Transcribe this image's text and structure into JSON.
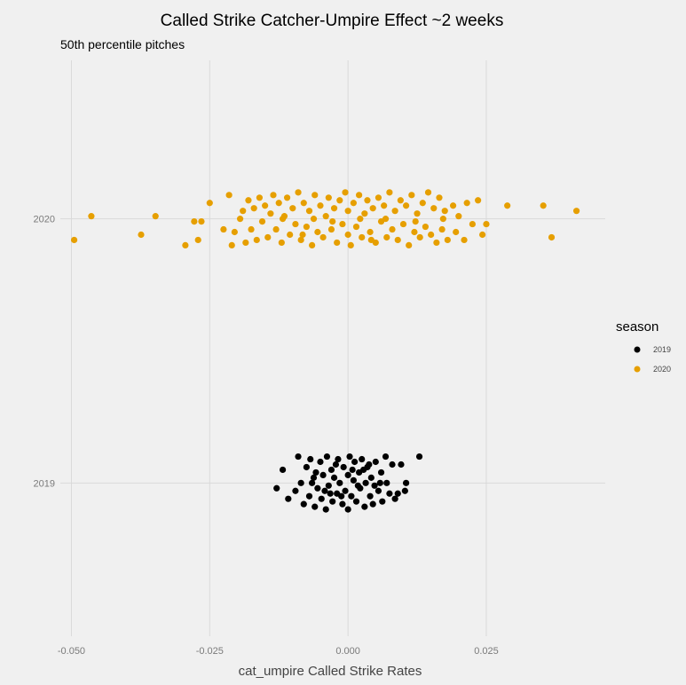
{
  "chart_data": {
    "type": "scatter",
    "title": "Called Strike Catcher-Umpire Effect ~2 weeks",
    "subtitle": "50th percentile pitches",
    "xlabel": "cat_umpire Called Strike Rates",
    "ylabel": "",
    "xlim": [
      -0.052,
      0.0465
    ],
    "ylim": [
      2018.42,
      2020.6
    ],
    "x_ticks": [
      -0.05,
      -0.025,
      0,
      0.025
    ],
    "x_tick_labels": [
      "-0.050",
      "-0.025",
      "0.000",
      "0.025"
    ],
    "y_ticks": [
      2019,
      2020
    ],
    "y_tick_labels": [
      "2019",
      "2020"
    ],
    "grid": true,
    "legend": {
      "title": "season",
      "position": "right",
      "entries": [
        "2019",
        "2020"
      ]
    },
    "series": [
      {
        "name": "2019",
        "color": "#000000",
        "points": [
          [
            -0.0129,
            2018.98
          ],
          [
            -0.0118,
            2019.05
          ],
          [
            -0.0108,
            2018.94
          ],
          [
            0.0129,
            2019.1
          ],
          [
            0.0105,
            2019.0
          ],
          [
            0.0103,
            2018.97
          ],
          [
            0.0096,
            2019.07
          ],
          [
            -0.009,
            2019.1
          ],
          [
            -0.0085,
            2019.0
          ],
          [
            -0.008,
            2018.92
          ],
          [
            -0.0075,
            2019.06
          ],
          [
            -0.007,
            2018.95
          ],
          [
            -0.0068,
            2019.09
          ],
          [
            -0.0062,
            2019.02
          ],
          [
            -0.006,
            2018.91
          ],
          [
            -0.0055,
            2018.98
          ],
          [
            -0.005,
            2019.08
          ],
          [
            -0.0048,
            2018.94
          ],
          [
            -0.0045,
            2019.03
          ],
          [
            -0.004,
            2018.9
          ],
          [
            -0.0038,
            2019.1
          ],
          [
            -0.0035,
            2018.99
          ],
          [
            -0.003,
            2019.05
          ],
          [
            -0.0028,
            2018.93
          ],
          [
            -0.0025,
            2019.02
          ],
          [
            -0.002,
            2018.96
          ],
          [
            -0.0018,
            2019.09
          ],
          [
            -0.0015,
            2019.0
          ],
          [
            -0.001,
            2018.92
          ],
          [
            -0.0008,
            2019.06
          ],
          [
            -0.0005,
            2018.97
          ],
          [
            0.0,
            2019.03
          ],
          [
            0.0,
            2018.9
          ],
          [
            0.0003,
            2019.1
          ],
          [
            0.0006,
            2018.95
          ],
          [
            0.001,
            2019.01
          ],
          [
            0.0012,
            2019.08
          ],
          [
            0.0015,
            2018.93
          ],
          [
            0.002,
            2019.04
          ],
          [
            0.0022,
            2018.98
          ],
          [
            0.0025,
            2019.09
          ],
          [
            0.003,
            2018.91
          ],
          [
            0.0032,
            2019.0
          ],
          [
            0.0035,
            2019.06
          ],
          [
            0.004,
            2018.95
          ],
          [
            0.0042,
            2019.02
          ],
          [
            0.0045,
            2018.92
          ],
          [
            0.005,
            2019.08
          ],
          [
            0.0055,
            2018.97
          ],
          [
            0.006,
            2019.04
          ],
          [
            0.0062,
            2018.93
          ],
          [
            0.0068,
            2019.1
          ],
          [
            0.007,
            2019.0
          ],
          [
            0.0075,
            2018.96
          ],
          [
            0.008,
            2019.07
          ],
          [
            0.0085,
            2018.94
          ],
          [
            -0.0065,
            2019.0
          ],
          [
            -0.0042,
            2018.97
          ],
          [
            -0.0022,
            2019.07
          ],
          [
            -0.0012,
            2018.95
          ],
          [
            0.0008,
            2019.05
          ],
          [
            0.0018,
            2018.99
          ],
          [
            0.0038,
            2019.07
          ],
          [
            0.0058,
            2019.0
          ],
          [
            -0.0095,
            2018.97
          ],
          [
            0.009,
            2018.96
          ],
          [
            -0.0058,
            2019.04
          ],
          [
            0.0048,
            2018.99
          ],
          [
            -0.0032,
            2018.96
          ],
          [
            0.0028,
            2019.05
          ]
        ]
      },
      {
        "name": "2020",
        "color": "#E69F00",
        "points": [
          [
            -0.0495,
            2019.92
          ],
          [
            -0.0464,
            2020.01
          ],
          [
            -0.0374,
            2019.94
          ],
          [
            -0.0348,
            2020.01
          ],
          [
            -0.0294,
            2019.9
          ],
          [
            -0.0278,
            2019.99
          ],
          [
            -0.0271,
            2019.92
          ],
          [
            -0.0265,
            2019.99
          ],
          [
            -0.025,
            2020.06
          ],
          [
            0.0413,
            2020.03
          ],
          [
            0.0368,
            2019.93
          ],
          [
            0.0353,
            2020.05
          ],
          [
            0.0288,
            2020.05
          ],
          [
            0.025,
            2019.98
          ],
          [
            0.0243,
            2019.94
          ],
          [
            0.0235,
            2020.07
          ],
          [
            -0.0215,
            2020.09
          ],
          [
            -0.021,
            2019.9
          ],
          [
            -0.0205,
            2019.95
          ],
          [
            -0.019,
            2020.03
          ],
          [
            -0.0185,
            2019.91
          ],
          [
            -0.018,
            2020.07
          ],
          [
            -0.0175,
            2019.96
          ],
          [
            -0.017,
            2020.04
          ],
          [
            -0.0165,
            2019.92
          ],
          [
            -0.016,
            2020.08
          ],
          [
            -0.0155,
            2019.99
          ],
          [
            -0.015,
            2020.05
          ],
          [
            -0.0145,
            2019.93
          ],
          [
            -0.014,
            2020.02
          ],
          [
            -0.0135,
            2020.09
          ],
          [
            -0.013,
            2019.96
          ],
          [
            -0.0125,
            2020.06
          ],
          [
            -0.012,
            2019.91
          ],
          [
            -0.0115,
            2020.01
          ],
          [
            -0.011,
            2020.08
          ],
          [
            -0.0105,
            2019.94
          ],
          [
            -0.01,
            2020.04
          ],
          [
            -0.0095,
            2019.98
          ],
          [
            -0.009,
            2020.1
          ],
          [
            -0.0085,
            2019.92
          ],
          [
            -0.008,
            2020.06
          ],
          [
            -0.0075,
            2019.97
          ],
          [
            -0.007,
            2020.03
          ],
          [
            -0.0065,
            2019.9
          ],
          [
            -0.006,
            2020.09
          ],
          [
            -0.0055,
            2019.95
          ],
          [
            -0.005,
            2020.05
          ],
          [
            -0.0045,
            2019.93
          ],
          [
            -0.004,
            2020.01
          ],
          [
            -0.0035,
            2020.08
          ],
          [
            -0.003,
            2019.96
          ],
          [
            -0.0025,
            2020.04
          ],
          [
            -0.002,
            2019.91
          ],
          [
            -0.0015,
            2020.07
          ],
          [
            -0.001,
            2019.98
          ],
          [
            -0.0005,
            2020.1
          ],
          [
            0.0,
            2019.94
          ],
          [
            0.0,
            2020.03
          ],
          [
            0.0005,
            2019.9
          ],
          [
            0.001,
            2020.06
          ],
          [
            0.0015,
            2019.97
          ],
          [
            0.002,
            2020.09
          ],
          [
            0.0025,
            2019.93
          ],
          [
            0.003,
            2020.02
          ],
          [
            0.0035,
            2020.07
          ],
          [
            0.004,
            2019.95
          ],
          [
            0.0045,
            2020.04
          ],
          [
            0.005,
            2019.91
          ],
          [
            0.0055,
            2020.08
          ],
          [
            0.006,
            2019.99
          ],
          [
            0.0065,
            2020.05
          ],
          [
            0.007,
            2019.93
          ],
          [
            0.0075,
            2020.1
          ],
          [
            0.008,
            2019.96
          ],
          [
            0.0085,
            2020.03
          ],
          [
            0.009,
            2019.92
          ],
          [
            0.0095,
            2020.07
          ],
          [
            0.01,
            2019.98
          ],
          [
            0.0105,
            2020.05
          ],
          [
            0.011,
            2019.9
          ],
          [
            0.0115,
            2020.09
          ],
          [
            0.012,
            2019.95
          ],
          [
            0.0125,
            2020.02
          ],
          [
            0.013,
            2019.93
          ],
          [
            0.0135,
            2020.06
          ],
          [
            0.014,
            2019.97
          ],
          [
            0.0145,
            2020.1
          ],
          [
            0.015,
            2019.94
          ],
          [
            0.0155,
            2020.04
          ],
          [
            0.016,
            2019.91
          ],
          [
            0.0165,
            2020.08
          ],
          [
            0.017,
            2019.96
          ],
          [
            0.0175,
            2020.03
          ],
          [
            0.018,
            2019.92
          ],
          [
            0.019,
            2020.05
          ],
          [
            0.0195,
            2019.95
          ],
          [
            0.02,
            2020.01
          ],
          [
            0.021,
            2019.92
          ],
          [
            0.0215,
            2020.06
          ],
          [
            0.0225,
            2019.98
          ],
          [
            -0.0225,
            2019.96
          ],
          [
            -0.0195,
            2020.0
          ],
          [
            -0.0118,
            2020.0
          ],
          [
            -0.0062,
            2020.0
          ],
          [
            -0.0028,
            2019.99
          ],
          [
            0.0022,
            2020.0
          ],
          [
            0.0068,
            2020.0
          ],
          [
            0.0122,
            2019.99
          ],
          [
            0.0172,
            2020.0
          ],
          [
            -0.0082,
            2019.94
          ],
          [
            0.0042,
            2019.92
          ]
        ]
      }
    ]
  }
}
